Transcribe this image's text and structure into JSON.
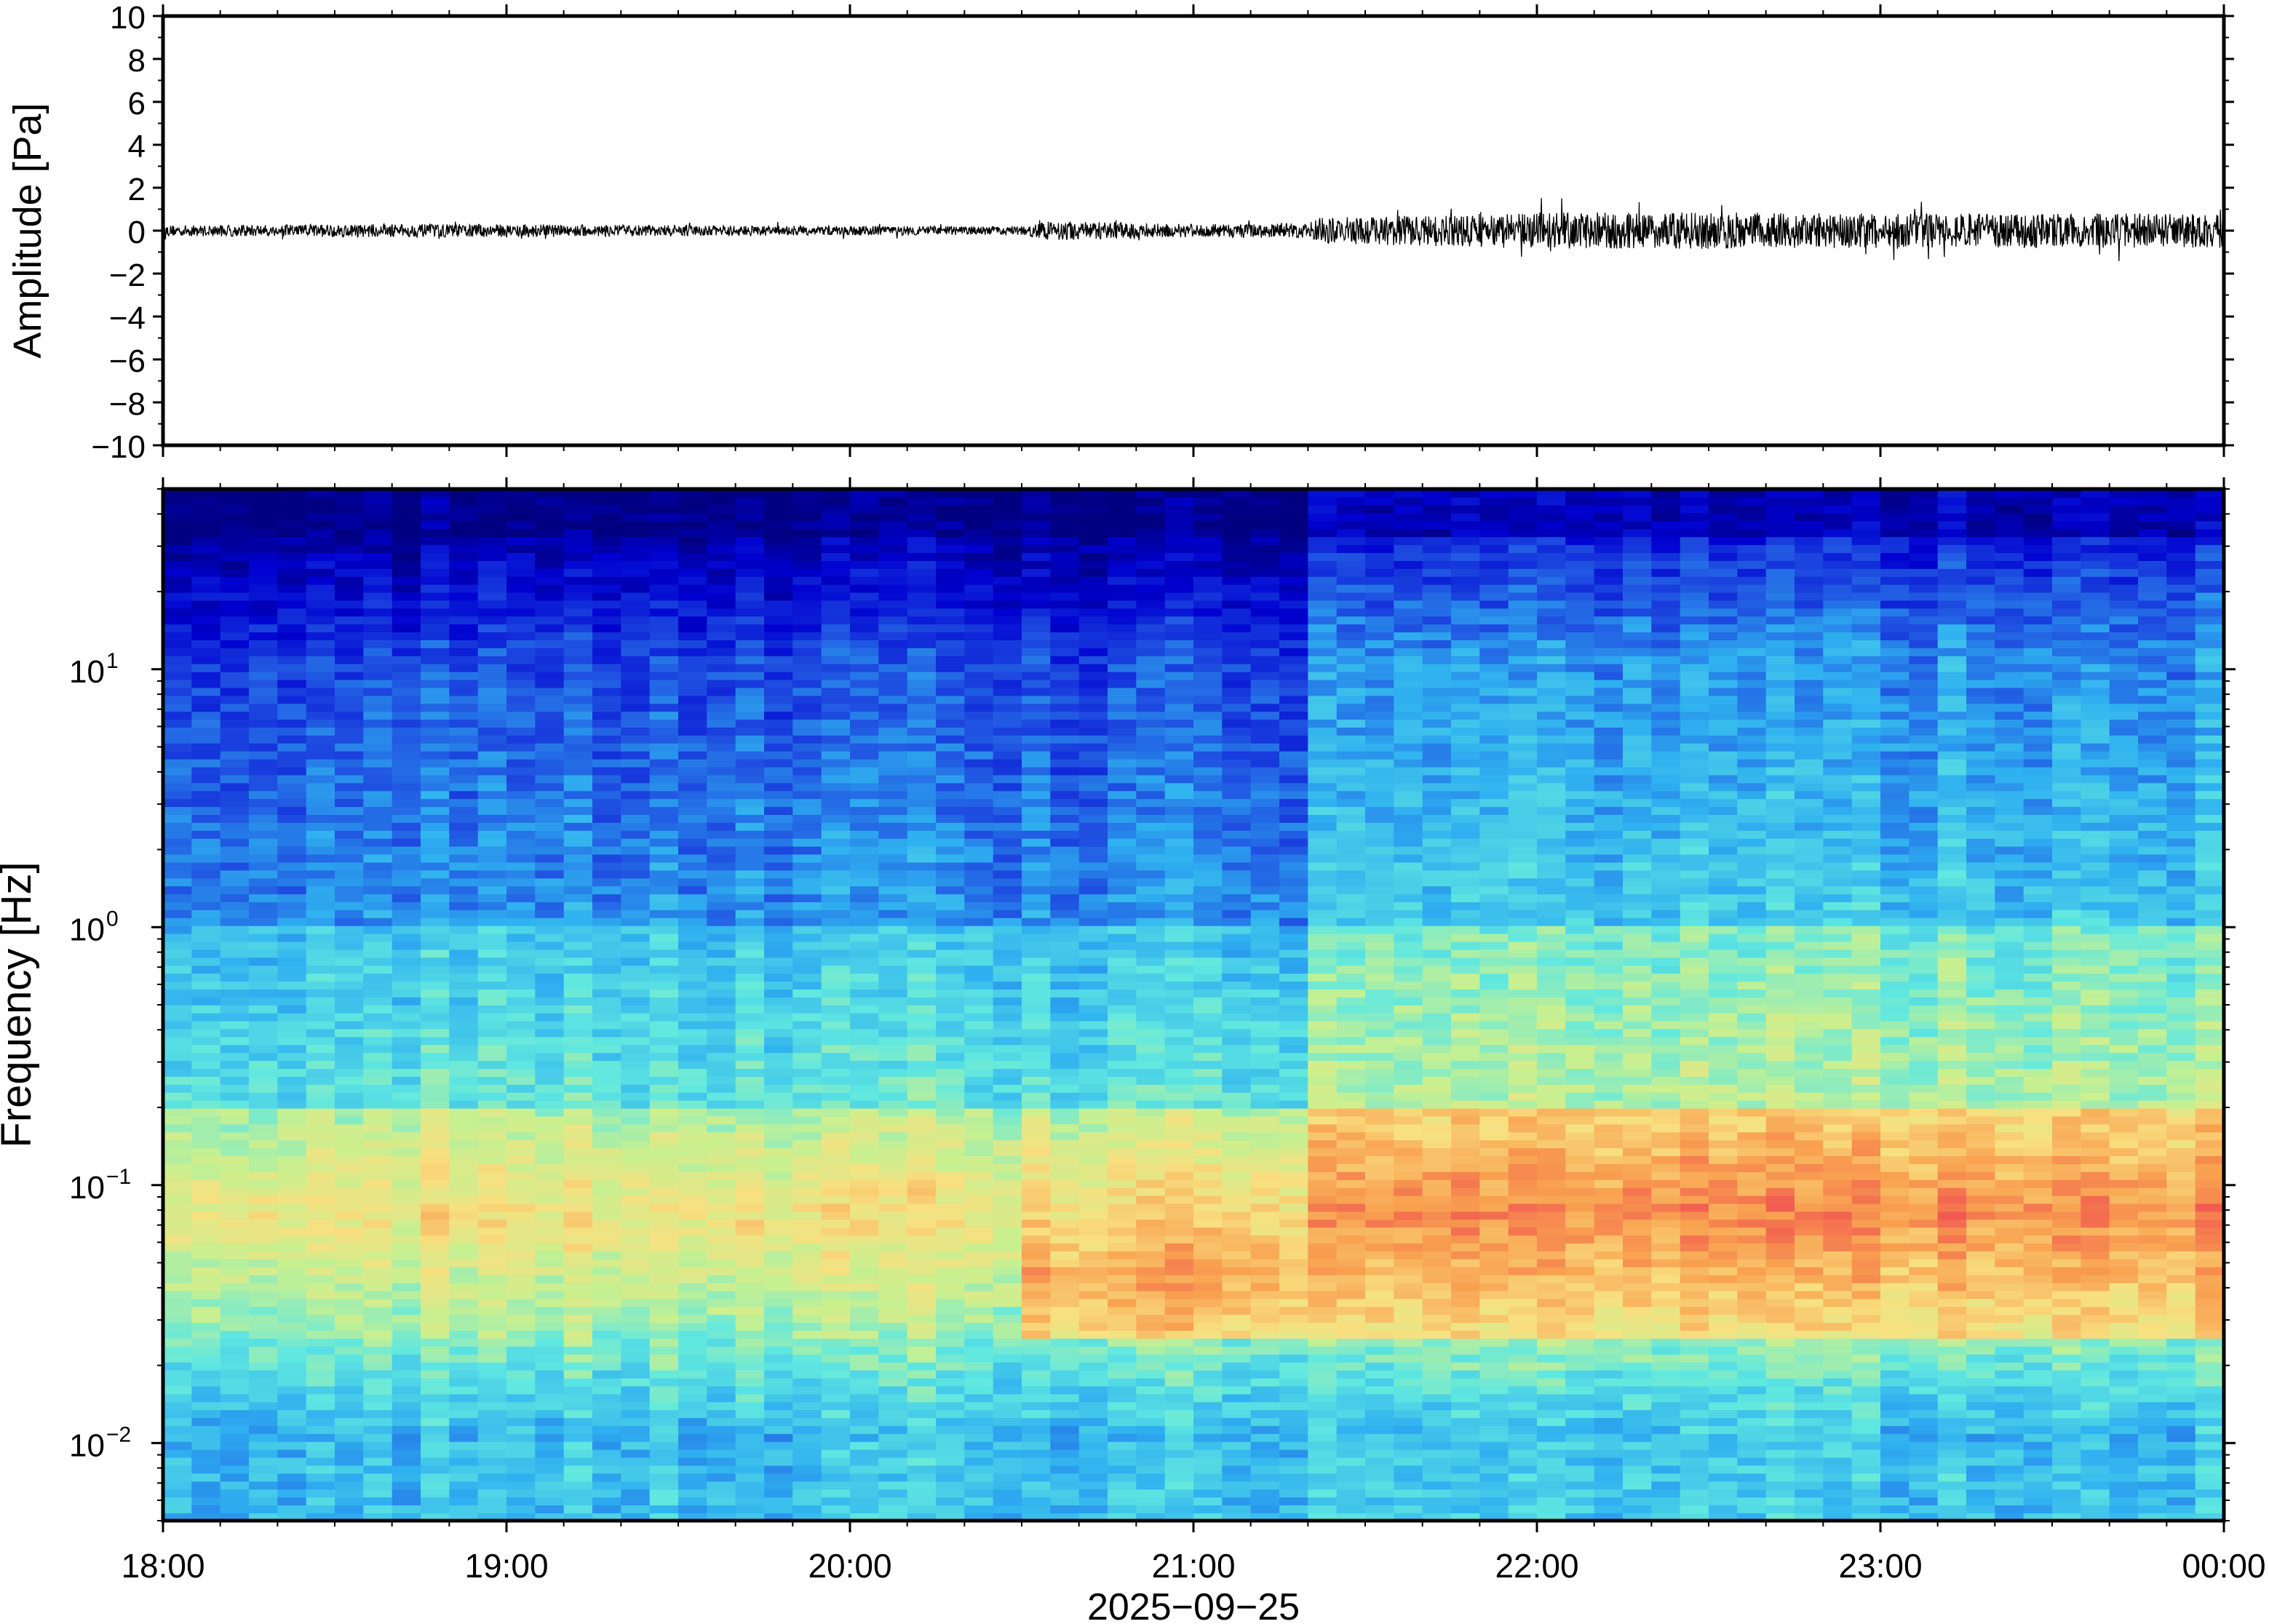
{
  "chart_data": [
    {
      "type": "line",
      "title": "",
      "ylabel": "Amplitude [Pa]",
      "ylim": [
        -10,
        10
      ],
      "yticks": [
        10,
        8,
        6,
        4,
        2,
        0,
        -2,
        -4,
        -6,
        -8,
        -10
      ],
      "ytick_labels": [
        "10",
        "8",
        "6",
        "4",
        "2",
        "0",
        "−2",
        "−4",
        "−6",
        "−8",
        "−10"
      ],
      "xlim": [
        "18:00",
        "00:00"
      ],
      "grid": false,
      "color": "#000000",
      "envelope": {
        "x": [
          "18:00",
          "18:30",
          "19:00",
          "19:30",
          "20:00",
          "20:30",
          "20:35",
          "21:00",
          "21:20",
          "21:22",
          "21:45",
          "22:00",
          "22:30",
          "23:00",
          "23:30",
          "00:00"
        ],
        "amplitude": [
          0.25,
          0.3,
          0.3,
          0.25,
          0.22,
          0.2,
          0.45,
          0.3,
          0.35,
          0.6,
          0.75,
          0.85,
          0.85,
          0.8,
          0.8,
          0.8
        ]
      }
    },
    {
      "type": "heatmap",
      "title": "",
      "ylabel": "Frequency [Hz]",
      "yscale": "log",
      "ylim": [
        0.005,
        50
      ],
      "yticks": [
        0.01,
        0.1,
        1,
        10
      ],
      "ytick_labels": [
        {
          "base": "10",
          "exp": "−2"
        },
        {
          "base": "10",
          "exp": "−1"
        },
        {
          "base": "10",
          "exp": "0"
        },
        {
          "base": "10",
          "exp": "1"
        }
      ],
      "xlabel": "2025−09−25",
      "xticks": [
        "18:00",
        "19:00",
        "20:00",
        "21:00",
        "22:00",
        "23:00",
        "00:00"
      ],
      "colormap": "jet",
      "colors": [
        "#000080",
        "#0000d0",
        "#1f4fe0",
        "#2fb0f0",
        "#60e8e0",
        "#c8f090",
        "#f8e080",
        "#f8a050",
        "#f05050"
      ],
      "time_segments": [
        {
          "from": "18:00",
          "to": "20:32",
          "level": "moderate"
        },
        {
          "from": "20:32",
          "to": "21:22",
          "level": "high-low-freq"
        },
        {
          "from": "21:22",
          "to": "00:00",
          "level": "high"
        }
      ]
    }
  ]
}
